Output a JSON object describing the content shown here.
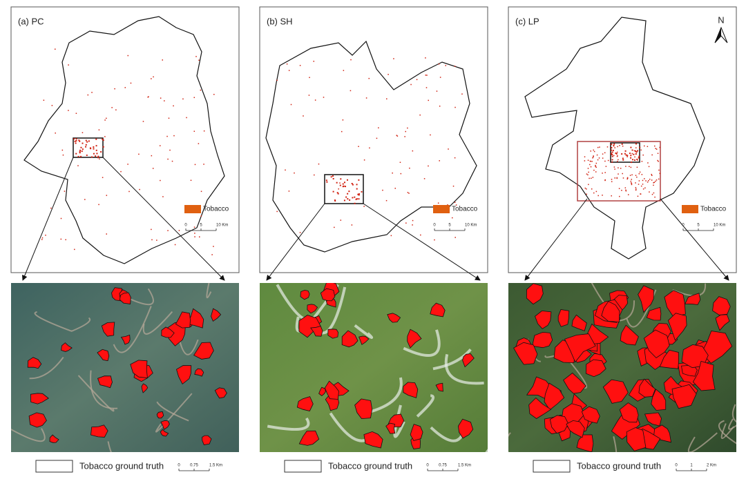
{
  "north": "N",
  "panels": [
    {
      "label": "(a) PC",
      "legend": "Tobacco",
      "scale": [
        "0",
        "5",
        "10 Km"
      ],
      "detail": {
        "legend": "Tobacco ground truth",
        "scale": [
          "0",
          "0.75",
          "1.5 Km"
        ]
      }
    },
    {
      "label": "(b) SH",
      "legend": "Tobacco",
      "scale": [
        "0",
        "5",
        "10 Km"
      ],
      "detail": {
        "legend": "Tobacco ground truth",
        "scale": [
          "0",
          "0.75",
          "1.5 Km"
        ]
      }
    },
    {
      "label": "(c) LP",
      "legend": "Tobacco",
      "scale": [
        "0",
        "5",
        "10 Km"
      ],
      "detail": {
        "legend": "Tobacco ground truth",
        "scale": [
          "0",
          "1",
          "2 Km"
        ]
      }
    }
  ]
}
